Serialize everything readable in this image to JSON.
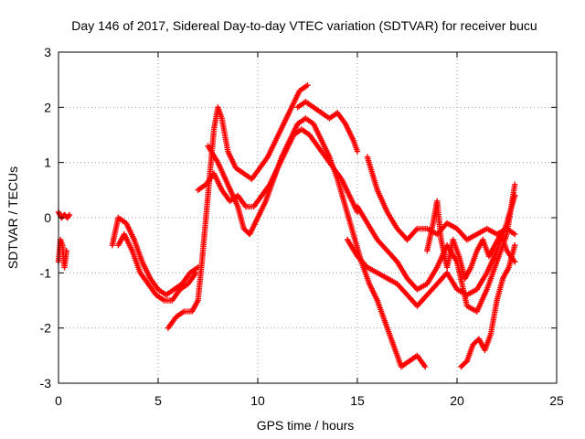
{
  "chart_data": {
    "type": "scatter",
    "title": "Day 146 of 2017, Sidereal Day-to-day VTEC variation (SDTVAR) for receiver bucu",
    "xlabel": "GPS time / hours",
    "ylabel": "SDTVAR / TECUs",
    "xlim": [
      0,
      25
    ],
    "ylim": [
      -3,
      3
    ],
    "xticks": [
      "0",
      "5",
      "10",
      "15",
      "20",
      "25"
    ],
    "yticks": [
      "-3",
      "-2",
      "-1",
      "0",
      "1",
      "2",
      "3"
    ],
    "grid": true,
    "marker": "plus",
    "color": "#ff0000",
    "series": [
      {
        "x": [
          0.0,
          0.1,
          0.2,
          0.3,
          0.4
        ],
        "y": [
          -0.8,
          -0.4,
          -0.5,
          -0.9,
          -0.6
        ]
      },
      {
        "x": [
          0.0,
          0.15,
          0.3,
          0.45,
          0.55
        ],
        "y": [
          0.1,
          0.0,
          0.05,
          0.0,
          0.05
        ]
      },
      {
        "x": [
          2.7,
          3.0,
          3.4,
          3.8,
          4.2,
          4.6,
          5.0,
          5.4,
          5.8,
          6.2,
          6.6,
          7.0
        ],
        "y": [
          -0.5,
          0.0,
          -0.1,
          -0.4,
          -0.8,
          -1.1,
          -1.3,
          -1.4,
          -1.3,
          -1.2,
          -1.0,
          -0.9
        ]
      },
      {
        "x": [
          3.0,
          3.3,
          3.7,
          4.1,
          4.5,
          4.9,
          5.3,
          5.7,
          6.1,
          6.5,
          6.9
        ],
        "y": [
          -0.5,
          -0.3,
          -0.6,
          -1.0,
          -1.2,
          -1.4,
          -1.5,
          -1.5,
          -1.3,
          -1.2,
          -1.0
        ]
      },
      {
        "x": [
          5.5,
          5.9,
          6.3,
          6.7,
          7.0,
          7.2,
          7.4,
          7.6,
          7.8,
          8.0,
          8.2,
          8.5,
          8.9,
          9.3,
          9.7,
          10.1,
          10.5,
          10.9,
          11.3,
          11.7,
          12.1,
          12.5
        ],
        "y": [
          -2.0,
          -1.8,
          -1.7,
          -1.7,
          -1.5,
          -0.8,
          0.0,
          0.8,
          1.6,
          2.0,
          1.8,
          1.2,
          0.9,
          0.8,
          0.7,
          0.9,
          1.1,
          1.4,
          1.7,
          2.0,
          2.3,
          2.4
        ]
      },
      {
        "x": [
          7.0,
          7.4,
          7.8,
          8.2,
          8.6,
          9.0,
          9.4,
          9.8,
          10.2,
          10.6,
          11.0,
          11.4,
          11.8,
          12.2,
          12.6,
          13.0,
          13.4,
          13.8,
          14.2,
          14.6,
          15.0
        ],
        "y": [
          0.5,
          0.6,
          0.8,
          0.5,
          0.3,
          0.4,
          0.2,
          0.2,
          0.4,
          0.6,
          0.9,
          1.2,
          1.5,
          1.6,
          1.5,
          1.3,
          1.1,
          0.9,
          0.7,
          0.4,
          0.1
        ]
      },
      {
        "x": [
          7.5,
          8.0,
          8.5,
          9.0,
          9.3,
          9.6,
          10.0,
          10.4,
          10.8,
          11.2,
          11.6,
          12.0,
          12.4,
          12.8,
          13.2,
          13.6,
          14.0,
          14.4,
          14.8,
          15.2,
          15.6,
          16.0,
          16.4,
          16.8,
          17.2,
          17.6,
          18.0,
          18.4
        ],
        "y": [
          1.3,
          1.0,
          0.6,
          0.2,
          -0.2,
          -0.3,
          0.0,
          0.3,
          0.7,
          1.1,
          1.4,
          1.7,
          1.8,
          1.7,
          1.4,
          1.1,
          0.7,
          0.2,
          -0.3,
          -0.8,
          -1.2,
          -1.5,
          -1.9,
          -2.3,
          -2.7,
          -2.6,
          -2.5,
          -2.7
        ]
      },
      {
        "x": [
          12.0,
          12.4,
          12.8,
          13.2,
          13.6,
          14.0,
          14.4,
          14.8,
          15.0
        ],
        "y": [
          2.0,
          2.1,
          2.0,
          1.9,
          1.8,
          1.9,
          1.7,
          1.4,
          1.2
        ]
      },
      {
        "x": [
          14.5,
          15.0,
          15.5,
          16.0,
          16.5,
          17.0,
          17.5,
          18.0,
          18.5,
          19.0,
          19.5,
          20.0,
          20.5,
          21.0,
          21.5,
          22.0,
          22.5,
          22.9
        ],
        "y": [
          -0.4,
          -0.7,
          -0.9,
          -1.0,
          -1.1,
          -1.2,
          -1.4,
          -1.6,
          -1.4,
          -1.2,
          -1.0,
          -1.3,
          -1.4,
          -1.3,
          -1.0,
          -0.6,
          -0.1,
          0.4
        ]
      },
      {
        "x": [
          15.5,
          16.0,
          16.5,
          17.0,
          17.5,
          18.0,
          18.5,
          19.0,
          19.5,
          20.0,
          20.5,
          21.0,
          21.5,
          22.0,
          22.5,
          22.9
        ],
        "y": [
          1.1,
          0.5,
          0.1,
          -0.2,
          -0.4,
          -0.2,
          -0.2,
          -0.3,
          -0.1,
          -0.2,
          -0.4,
          -0.3,
          -0.2,
          -0.3,
          -0.2,
          -0.3
        ]
      },
      {
        "x": [
          15.0,
          15.5,
          16.0,
          16.5,
          17.0,
          17.5,
          18.0,
          18.5,
          19.0,
          19.5,
          20.0,
          20.5,
          21.0,
          21.5,
          22.0,
          22.5,
          22.9
        ],
        "y": [
          0.2,
          -0.1,
          -0.4,
          -0.6,
          -0.8,
          -1.1,
          -1.3,
          -1.2,
          -0.9,
          -0.5,
          -0.8,
          -1.6,
          -1.7,
          -1.3,
          -0.8,
          -0.3,
          0.6
        ]
      },
      {
        "x": [
          18.5,
          18.8,
          19.0,
          19.2,
          19.5,
          19.8,
          20.1,
          20.4,
          20.7,
          21.0,
          21.3,
          21.6,
          21.9,
          22.2,
          22.5,
          22.9
        ],
        "y": [
          -0.6,
          -0.1,
          0.3,
          -0.4,
          -0.9,
          -0.4,
          -0.7,
          -1.1,
          -0.9,
          -0.6,
          -0.4,
          -0.7,
          -0.5,
          -0.3,
          -0.6,
          -0.8
        ]
      },
      {
        "x": [
          20.2,
          20.5,
          20.8,
          21.1,
          21.4,
          21.7,
          22.0,
          22.3,
          22.6,
          22.9
        ],
        "y": [
          -2.7,
          -2.6,
          -2.3,
          -2.2,
          -2.4,
          -2.1,
          -1.5,
          -1.1,
          -0.9,
          -0.5
        ]
      }
    ]
  }
}
